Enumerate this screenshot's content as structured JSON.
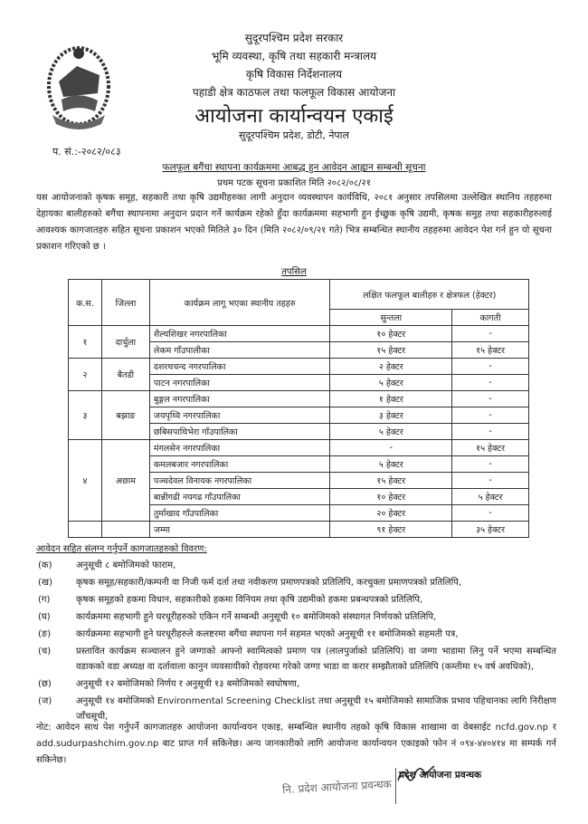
{
  "letterhead": {
    "line1": "सुदूरपश्चिम प्रदेश सरकार",
    "line2": "भूमि व्यवस्था, कृषि तथा सहकारी मन्त्रालय",
    "line3": "कृषि विकास निर्देशनालय",
    "line4": "पहाडी क्षेत्र काठफल तथा फलफूल विकास आयोजना",
    "office": "आयोजना कार्यान्वयन एकाई",
    "address": "सुदूरपश्चिम प्रदेश, डोटी, नेपाल"
  },
  "reference": "प. सं.:-२०८२/०८३",
  "notice": {
    "title": "फलफूल बगैंचा स्थापना कार्यक्रममा आबद्ध हुन आवेदन आह्वान सम्बन्धी सूचना",
    "published": "प्रथम पटक सूचना प्रकाशित मिति २०८२/०८/२१",
    "body": "यस आयोजनाको कृषक समूह, सहकारी तथा कृषि उद्यमीहरुका लागी अनुदान व्यवस्थापन कार्यविधि, २०८१ अनुसार तपसिलमा उल्लेखित स्थानिय तहहरुमा देहायका बालीहरुको बगैंचा स्थापनामा अनुदान प्रदान गर्ने कार्यक्रम रहेको हुँदा कार्यक्रममा सहभागी हुन ईच्छुक कृषि उद्यमी, कृषक समुह तथा सहकारीहरुलाई आवश्यक कागजातहरु सहित सूचना प्रकाशन भएको मितिले ३० दिन (मिति २०८२/०९/२१ गते) भित्र सम्बन्धित स्थानीय तहहरुमा आवेदन पेश गर्न हुन यो सूचना प्रकाशन गरिएको छ ।"
  },
  "table": {
    "caption": "तपसिल",
    "headers": {
      "sn": "क.स.",
      "district": "जिल्ला",
      "local_level": "कार्यक्रम लागू भएका स्थानीय तहहरु",
      "target": "लक्षित फलफूल बालीहरु र क्षेत्रफल (हेक्टर)",
      "orange": "सुन्तला",
      "lime": "कागती"
    },
    "groups": [
      {
        "sn": "१",
        "district": "दार्चुला",
        "rows": [
          {
            "local": "शैल्यशिखर नगरपालिका",
            "orange": "१० हेक्टर",
            "lime": "-"
          },
          {
            "local": "लेकम गाँउपालीका",
            "orange": "१५ हेक्टर",
            "lime": "१५ हेक्टर"
          }
        ]
      },
      {
        "sn": "२",
        "district": "बैतडी",
        "rows": [
          {
            "local": "दशरथचन्द नगरपालिका",
            "orange": "२ हेक्टर",
            "lime": "-"
          },
          {
            "local": "पाटन नगरपालिका",
            "orange": "५ हेक्टर",
            "lime": "-"
          }
        ]
      },
      {
        "sn": "३",
        "district": "बझाङ",
        "rows": [
          {
            "local": "बुङ्गल नगरपालिका",
            "orange": "१ हेक्टर",
            "lime": "-"
          },
          {
            "local": "जयपृथ्वि नगरपालिका",
            "orange": "३ हेक्टर",
            "lime": "-"
          },
          {
            "local": "छबिसपाथिभेरा गाँउपालिका",
            "orange": "५ हेक्टर",
            "lime": "-"
          }
        ]
      },
      {
        "sn": "४",
        "district": "अछाम",
        "rows": [
          {
            "local": "मंगलसेन नगरपालिका",
            "orange": "-",
            "lime": "१५ हेक्टर"
          },
          {
            "local": "कमलबजार नगरपालिका",
            "orange": "५ हेक्टर",
            "lime": "-"
          },
          {
            "local": "पञ्चदेवल विनायक नगरपालिका",
            "orange": "१५ हेक्टर",
            "lime": "-"
          },
          {
            "local": "बान्नीगढी नयगढ गाँउपालिका",
            "orange": "१० हेक्टर",
            "lime": "५ हेक्टर"
          },
          {
            "local": "तुर्माखाद गाँउपालिका",
            "orange": "२० हेक्टर",
            "lime": "-"
          }
        ]
      }
    ],
    "total": {
      "label": "जम्मा",
      "orange": "९१ हेक्टर",
      "lime": "३५ हेक्टर"
    }
  },
  "documents": {
    "heading": "आवेदन सहित संलग्न गर्नुपर्ने कागजातहरुको विवरण:",
    "items": [
      {
        "key": "(क)",
        "text": "अनुसूची ८ बमोजिमको फाराम,"
      },
      {
        "key": "(ख)",
        "text": "कृषक समूह/सहकारी/कम्पनी वा निजी फर्म दर्ता तथा नवीकरण प्रमाणपत्रको प्रतिलिपि, करचुक्ता प्रमाणपत्रको प्रतिलिपि,"
      },
      {
        "key": "(ग)",
        "text": "कृषक समूहको हकमा विधान, सहकारीको हकमा विनियम तथा कृषि उद्यमीको हकमा प्रबन्धपत्रको प्रतिलिपि,"
      },
      {
        "key": "(घ)",
        "text": "कार्यक्रममा सहभागी हुने घरधूरीहरुको एकिन गर्ने सम्बन्धी अनुसूची १० बमोजिमको संस्थागत निर्णयको प्रतिलिपि,"
      },
      {
        "key": "(ङ)",
        "text": "कार्यक्रममा सहभागी हुने घरधूरीहरुले कलष्टरमा बगैंचा स्थापना गर्न सहमत भएको अनुसूची ११ बमोजिमको सहमती पत्र,"
      },
      {
        "key": "(च)",
        "text": "प्रस्तावित कार्यक्रम सञ्चालन हुने जग्गाको आफ्नो स्वामित्वको प्रमाण पत्र (लालपुर्जाको प्रतिलिपि) वा जग्गा भाडामा लिनु पर्ने भएमा सम्बन्धित वडाकको वडा अध्यक्ष वा दर्तावाला कानुन व्यवसायीको रोहवरमा गरेको जग्गा भाडा वा करार सम्झौताको प्रतिलिपि (कम्तीमा १५ वर्ष अवधिको),"
      },
      {
        "key": "(छ)",
        "text": "अनुसूची १२ बमोजिमको निर्णय र अनुसूची १३ बमोजिमको स्वघोषणा,"
      },
      {
        "key": "(ज)",
        "text": "अनुसूची १४ बमोजिमको Environmental Screening Checklist तथा अनुसूची १५ बमोजिमको सामाजिक प्रभाव पहिचानका लागि निरीक्षण जाँचसूची,"
      }
    ]
  },
  "note": "नोट: आवेदन साथ पेश गर्नुपर्ने कागजातहरु आयोजना कार्यान्वयन एकाइ, सम्बन्धित स्थानीय तहको कृषि विकास शाखामा वा वेबसाईट ncfd.gov.np र add.sudurpashchim.gov.np बाट प्राप्त गर्न सकिनेछ। अन्य जानकारीको लागि आयोजना कार्यान्वयन एकाइको फोन नं ०९४-४४०४१४ मा सम्पर्क गर्न सकिनेछ।",
  "signature": {
    "stamp": "नि. प्रदेश आयोजना प्रवन्धक",
    "title": "प्रदेश आयोजना प्रवन्धक"
  }
}
